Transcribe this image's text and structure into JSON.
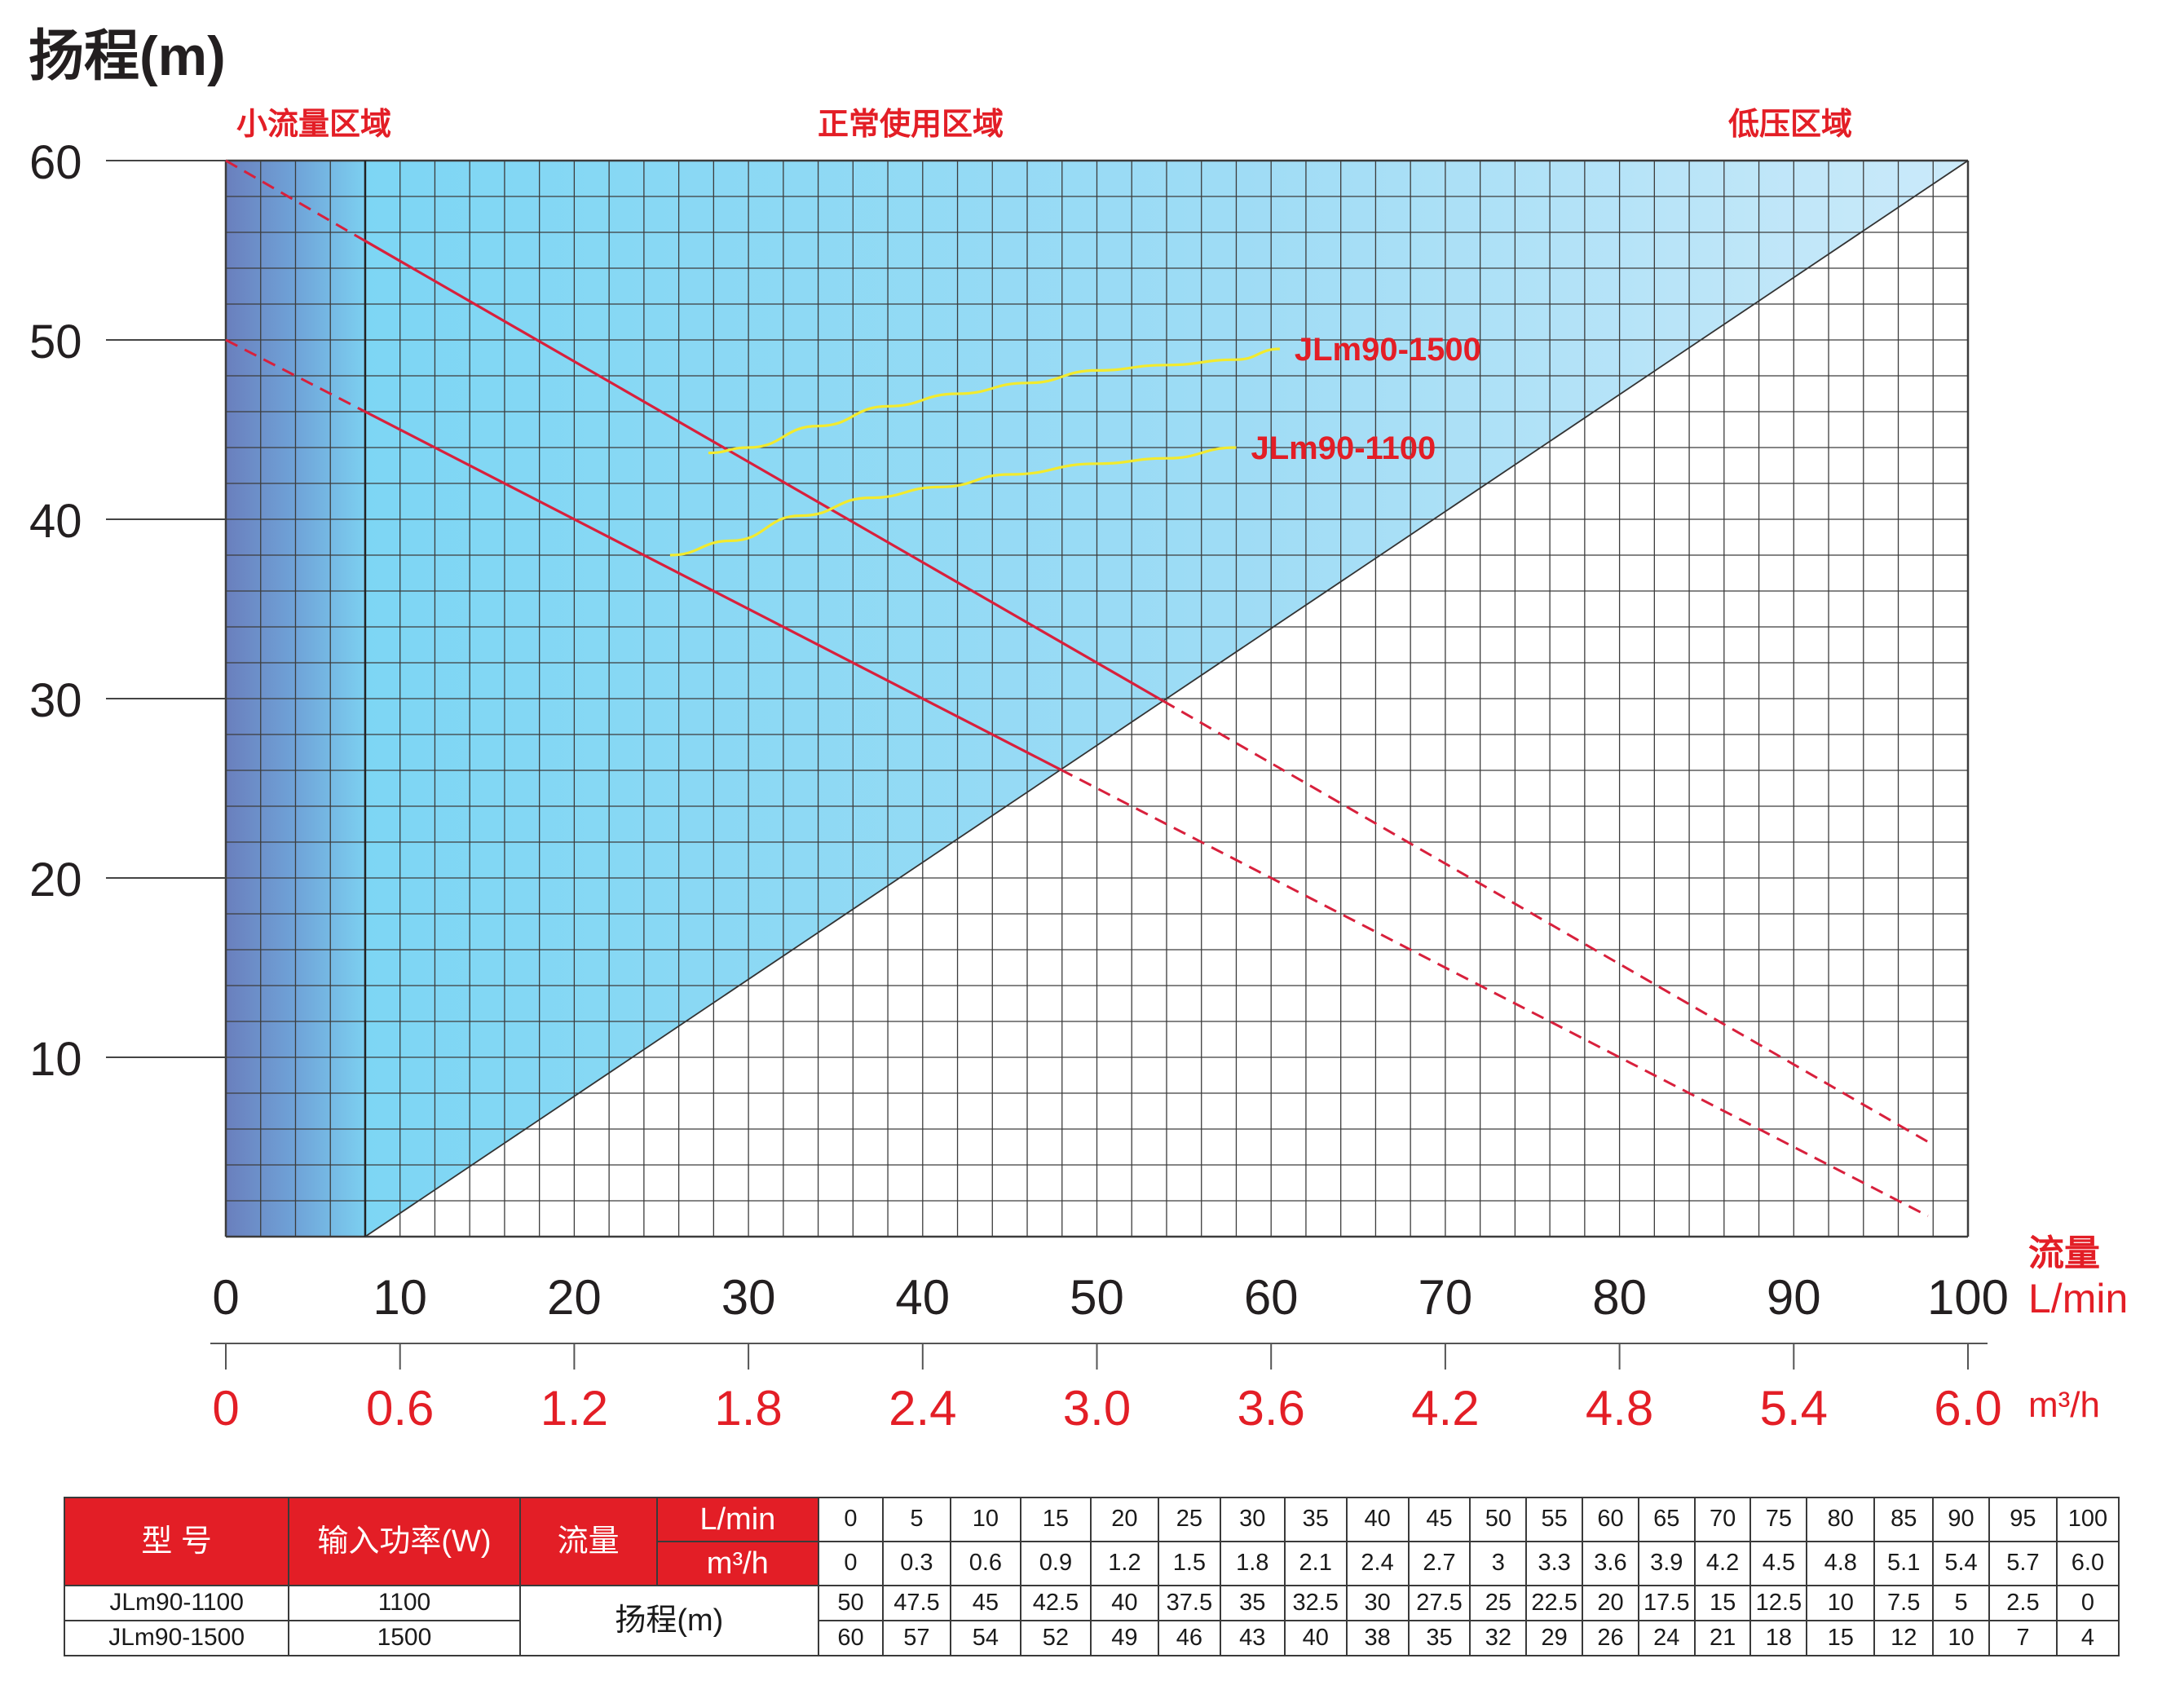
{
  "chart_data": {
    "type": "line",
    "ylabel": "扬程(m)",
    "xlabel": "流量",
    "x_unit": "L/min",
    "x2_unit": "m³/h",
    "xlim": [
      0,
      100
    ],
    "ylim": [
      0,
      60
    ],
    "x_ticks": [
      "0",
      "10",
      "20",
      "30",
      "40",
      "50",
      "60",
      "70",
      "80",
      "90",
      "100"
    ],
    "x2_ticks": [
      "0",
      "0.6",
      "1.2",
      "1.8",
      "2.4",
      "3.0",
      "3.6",
      "4.2",
      "4.8",
      "5.4",
      "6.0"
    ],
    "y_ticks": [
      "10",
      "20",
      "30",
      "40",
      "50",
      "60"
    ],
    "zones": [
      {
        "label": "小流量区域",
        "x_range": [
          0,
          8
        ]
      },
      {
        "label": "正常使用区域",
        "x_range": [
          8,
          100
        ]
      },
      {
        "label": "低压区域",
        "x_range": [
          60,
          100
        ]
      }
    ],
    "grid": true,
    "series": [
      {
        "name": "JLm90-1100",
        "x": [
          0,
          5,
          10,
          15,
          20,
          25,
          30,
          35,
          40,
          45,
          50,
          55,
          60,
          65,
          70,
          75,
          80,
          85,
          90,
          95,
          100
        ],
        "values": [
          50,
          47.5,
          45,
          42.5,
          40,
          37.5,
          35,
          32.5,
          30,
          27.5,
          25,
          22.5,
          20,
          17.5,
          15,
          12.5,
          10,
          7.5,
          5,
          2.5,
          0
        ],
        "color": "#d8203c"
      },
      {
        "name": "JLm90-1500",
        "x": [
          0,
          5,
          10,
          15,
          20,
          25,
          30,
          35,
          40,
          45,
          50,
          55,
          60,
          65,
          70,
          75,
          80,
          85,
          90,
          95,
          100
        ],
        "values": [
          60,
          57,
          54,
          52,
          49,
          46,
          43,
          40,
          38,
          35,
          32,
          29,
          26,
          24,
          21,
          18,
          15,
          12,
          10,
          7,
          4
        ],
        "color": "#d8203c"
      }
    ],
    "efficiency_curves": [
      {
        "label": "JLm90-1100",
        "x": [
          25.5,
          29,
          33,
          37,
          41,
          45,
          50,
          54,
          58
        ],
        "values": [
          38,
          38.8,
          40.2,
          41.2,
          41.8,
          42.5,
          43.1,
          43.4,
          44
        ],
        "color": "#f2ea2e"
      },
      {
        "label": "JLm90-1500",
        "x": [
          27.7,
          30,
          34,
          38,
          42,
          46,
          50,
          54,
          58,
          60.5
        ],
        "values": [
          43.7,
          44,
          45.2,
          46.3,
          47,
          47.6,
          48.3,
          48.6,
          48.9,
          49.5
        ],
        "color": "#f2ea2e"
      }
    ]
  },
  "table": {
    "hdr_model": "型  号",
    "hdr_power": "输入功率(W)",
    "hdr_flow": "流量",
    "unit_lmin": "L/min",
    "unit_m3h": "m³/h",
    "head_label": "扬程(m)",
    "flow_lmin": [
      "0",
      "5",
      "10",
      "15",
      "20",
      "25",
      "30",
      "35",
      "40",
      "45",
      "50",
      "55",
      "60",
      "65",
      "70",
      "75",
      "80",
      "85",
      "90",
      "95",
      "100"
    ],
    "flow_m3h": [
      "0",
      "0.3",
      "0.6",
      "0.9",
      "1.2",
      "1.5",
      "1.8",
      "2.1",
      "2.4",
      "2.7",
      "3",
      "3.3",
      "3.6",
      "3.9",
      "4.2",
      "4.5",
      "4.8",
      "5.1",
      "5.4",
      "5.7",
      "6.0"
    ],
    "models": [
      {
        "name": "JLm90-1100",
        "power": "1100",
        "heads": [
          "50",
          "47.5",
          "45",
          "42.5",
          "40",
          "37.5",
          "35",
          "32.5",
          "30",
          "27.5",
          "25",
          "22.5",
          "20",
          "17.5",
          "15",
          "12.5",
          "10",
          "7.5",
          "5",
          "2.5",
          "0"
        ]
      },
      {
        "name": "JLm90-1500",
        "power": "1500",
        "heads": [
          "60",
          "57",
          "54",
          "52",
          "49",
          "46",
          "43",
          "40",
          "38",
          "35",
          "32",
          "29",
          "26",
          "24",
          "21",
          "18",
          "15",
          "12",
          "10",
          "7",
          "4"
        ]
      }
    ]
  }
}
